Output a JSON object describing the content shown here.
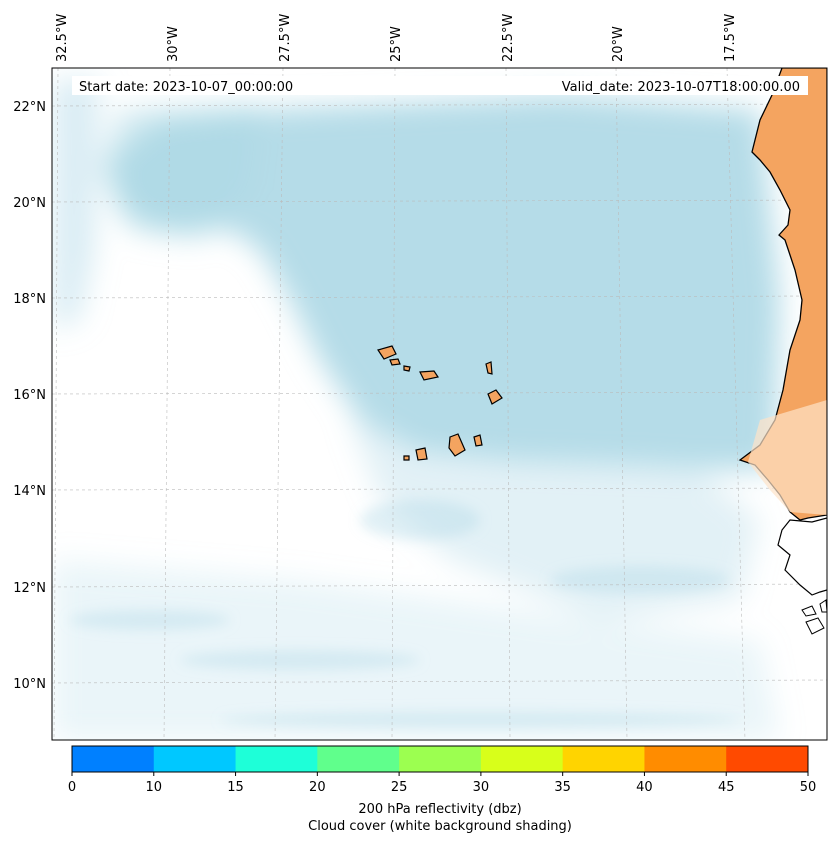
{
  "map": {
    "start_date": "Start date: 2023-10-07_00:00:00",
    "valid_date": "Valid_date: 2023-10-07T18:00:00.00",
    "longitude_labels": [
      "32.5°W",
      "30°W",
      "27.5°W",
      "25°W",
      "22.5°W",
      "20°W",
      "17.5°W"
    ],
    "latitude_labels": [
      "22°N",
      "20°N",
      "18°N",
      "16°N",
      "14°N",
      "12°N",
      "10°N"
    ],
    "colors": {
      "cloud": "#add8e6",
      "land": "#f4a460",
      "coastline": "#000000"
    }
  },
  "colorbar": {
    "ticks": [
      "0",
      "10",
      "15",
      "20",
      "25",
      "30",
      "35",
      "40",
      "45",
      "50"
    ],
    "colors": [
      "#0080ff",
      "#00c8ff",
      "#1effd8",
      "#60ff8c",
      "#9cff50",
      "#d8ff1a",
      "#ffd400",
      "#ff8c00",
      "#ff4a00"
    ],
    "label_line1": "200 hPa reflectivity (dbz)",
    "label_line2": "Cloud cover (white background shading)"
  }
}
